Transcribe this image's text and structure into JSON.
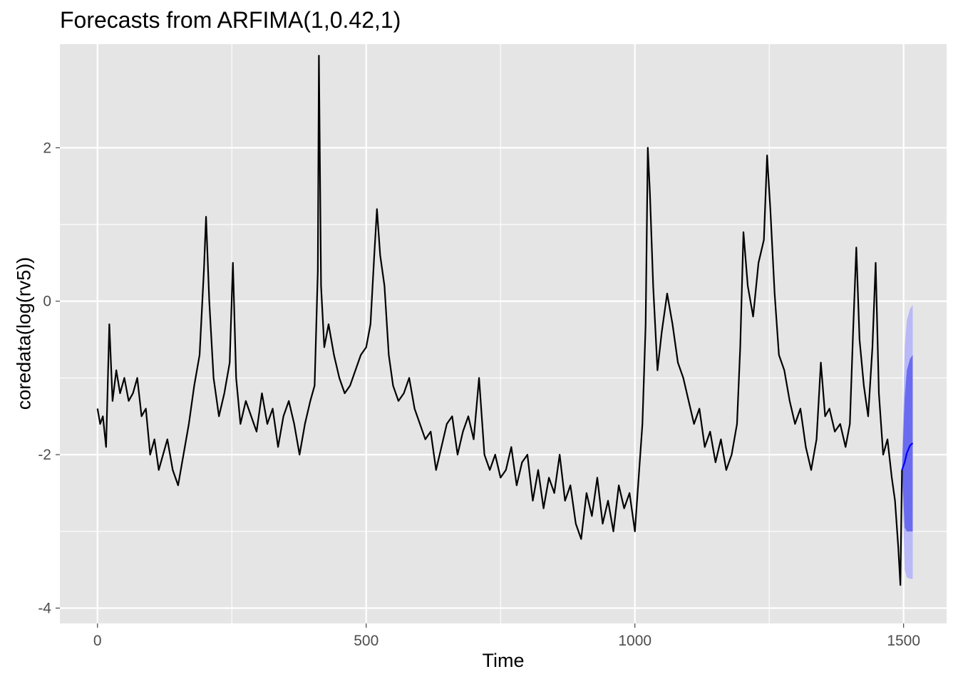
{
  "chart_data": {
    "type": "line",
    "title": "Forecasts from ARFIMA(1,0.42,1)",
    "xlabel": "Time",
    "ylabel": "coredata(log(rv5))",
    "xlim": [
      -70,
      1580
    ],
    "ylim": [
      -4.2,
      3.35
    ],
    "x_ticks": [
      0,
      500,
      1000,
      1500
    ],
    "x_tick_labels": [
      "0",
      "500",
      "1000",
      "1500"
    ],
    "y_ticks": [
      -4,
      -2,
      0,
      2
    ],
    "y_tick_labels": [
      "-4",
      "-2",
      "0",
      "2"
    ],
    "x_minor": [
      250,
      750,
      1250
    ],
    "y_minor": [
      -3,
      -1,
      1
    ],
    "grid": true,
    "colors": {
      "panel": "#e5e5e5",
      "grid": "#ffffff",
      "series": "#000000",
      "forecast": "#0000ff",
      "band80": "#6b6bef",
      "band95": "#b9b9f7"
    },
    "series": [
      {
        "values": [
          [
            0,
            -1.4
          ],
          [
            5,
            -1.6
          ],
          [
            10,
            -1.5
          ],
          [
            16,
            -1.9
          ],
          [
            22,
            -0.3
          ],
          [
            28,
            -1.3
          ],
          [
            35,
            -0.9
          ],
          [
            42,
            -1.2
          ],
          [
            50,
            -1.0
          ],
          [
            58,
            -1.3
          ],
          [
            66,
            -1.2
          ],
          [
            74,
            -1.0
          ],
          [
            82,
            -1.5
          ],
          [
            90,
            -1.4
          ],
          [
            98,
            -2.0
          ],
          [
            106,
            -1.8
          ],
          [
            114,
            -2.2
          ],
          [
            122,
            -2.0
          ],
          [
            130,
            -1.8
          ],
          [
            140,
            -2.2
          ],
          [
            150,
            -2.4
          ],
          [
            160,
            -2.0
          ],
          [
            170,
            -1.6
          ],
          [
            180,
            -1.1
          ],
          [
            190,
            -0.7
          ],
          [
            198,
            0.4
          ],
          [
            202,
            1.1
          ],
          [
            208,
            0.0
          ],
          [
            216,
            -1.0
          ],
          [
            226,
            -1.5
          ],
          [
            236,
            -1.2
          ],
          [
            246,
            -0.8
          ],
          [
            252,
            0.5
          ],
          [
            258,
            -1.0
          ],
          [
            266,
            -1.6
          ],
          [
            276,
            -1.3
          ],
          [
            286,
            -1.5
          ],
          [
            296,
            -1.7
          ],
          [
            306,
            -1.2
          ],
          [
            316,
            -1.6
          ],
          [
            326,
            -1.4
          ],
          [
            336,
            -1.9
          ],
          [
            346,
            -1.5
          ],
          [
            356,
            -1.3
          ],
          [
            366,
            -1.6
          ],
          [
            376,
            -2.0
          ],
          [
            386,
            -1.6
          ],
          [
            396,
            -1.3
          ],
          [
            404,
            -1.1
          ],
          [
            410,
            0.4
          ],
          [
            412,
            3.2
          ],
          [
            416,
            0.2
          ],
          [
            422,
            -0.6
          ],
          [
            430,
            -0.3
          ],
          [
            440,
            -0.7
          ],
          [
            450,
            -1.0
          ],
          [
            460,
            -1.2
          ],
          [
            470,
            -1.1
          ],
          [
            480,
            -0.9
          ],
          [
            490,
            -0.7
          ],
          [
            500,
            -0.6
          ],
          [
            508,
            -0.3
          ],
          [
            515,
            0.6
          ],
          [
            520,
            1.2
          ],
          [
            526,
            0.6
          ],
          [
            534,
            0.2
          ],
          [
            542,
            -0.7
          ],
          [
            550,
            -1.1
          ],
          [
            560,
            -1.3
          ],
          [
            570,
            -1.2
          ],
          [
            580,
            -1.0
          ],
          [
            590,
            -1.4
          ],
          [
            600,
            -1.6
          ],
          [
            610,
            -1.8
          ],
          [
            620,
            -1.7
          ],
          [
            630,
            -2.2
          ],
          [
            640,
            -1.9
          ],
          [
            650,
            -1.6
          ],
          [
            660,
            -1.5
          ],
          [
            670,
            -2.0
          ],
          [
            680,
            -1.7
          ],
          [
            690,
            -1.5
          ],
          [
            700,
            -1.8
          ],
          [
            710,
            -1.0
          ],
          [
            720,
            -2.0
          ],
          [
            730,
            -2.2
          ],
          [
            740,
            -2.0
          ],
          [
            750,
            -2.3
          ],
          [
            760,
            -2.2
          ],
          [
            770,
            -1.9
          ],
          [
            780,
            -2.4
          ],
          [
            790,
            -2.1
          ],
          [
            800,
            -2.0
          ],
          [
            810,
            -2.6
          ],
          [
            820,
            -2.2
          ],
          [
            830,
            -2.7
          ],
          [
            840,
            -2.3
          ],
          [
            850,
            -2.5
          ],
          [
            860,
            -2.0
          ],
          [
            870,
            -2.6
          ],
          [
            880,
            -2.4
          ],
          [
            890,
            -2.9
          ],
          [
            900,
            -3.1
          ],
          [
            910,
            -2.5
          ],
          [
            920,
            -2.8
          ],
          [
            930,
            -2.3
          ],
          [
            940,
            -2.9
          ],
          [
            950,
            -2.6
          ],
          [
            960,
            -3.0
          ],
          [
            970,
            -2.4
          ],
          [
            980,
            -2.7
          ],
          [
            990,
            -2.5
          ],
          [
            1000,
            -3.0
          ],
          [
            1006,
            -2.4
          ],
          [
            1014,
            -1.6
          ],
          [
            1020,
            -0.3
          ],
          [
            1024,
            2.0
          ],
          [
            1028,
            1.4
          ],
          [
            1034,
            0.2
          ],
          [
            1042,
            -0.9
          ],
          [
            1050,
            -0.4
          ],
          [
            1060,
            0.1
          ],
          [
            1070,
            -0.3
          ],
          [
            1080,
            -0.8
          ],
          [
            1090,
            -1.0
          ],
          [
            1100,
            -1.3
          ],
          [
            1110,
            -1.6
          ],
          [
            1120,
            -1.4
          ],
          [
            1130,
            -1.9
          ],
          [
            1140,
            -1.7
          ],
          [
            1150,
            -2.1
          ],
          [
            1160,
            -1.8
          ],
          [
            1170,
            -2.2
          ],
          [
            1180,
            -2.0
          ],
          [
            1190,
            -1.6
          ],
          [
            1196,
            -0.6
          ],
          [
            1202,
            0.9
          ],
          [
            1210,
            0.2
          ],
          [
            1220,
            -0.2
          ],
          [
            1230,
            0.5
          ],
          [
            1240,
            0.8
          ],
          [
            1246,
            1.9
          ],
          [
            1252,
            1.2
          ],
          [
            1260,
            0.1
          ],
          [
            1268,
            -0.7
          ],
          [
            1278,
            -0.9
          ],
          [
            1288,
            -1.3
          ],
          [
            1298,
            -1.6
          ],
          [
            1308,
            -1.4
          ],
          [
            1318,
            -1.9
          ],
          [
            1328,
            -2.2
          ],
          [
            1338,
            -1.8
          ],
          [
            1346,
            -0.8
          ],
          [
            1354,
            -1.5
          ],
          [
            1362,
            -1.4
          ],
          [
            1372,
            -1.7
          ],
          [
            1382,
            -1.6
          ],
          [
            1392,
            -1.9
          ],
          [
            1400,
            -1.6
          ],
          [
            1406,
            -0.4
          ],
          [
            1412,
            0.7
          ],
          [
            1418,
            -0.5
          ],
          [
            1426,
            -1.1
          ],
          [
            1434,
            -1.5
          ],
          [
            1442,
            -0.6
          ],
          [
            1448,
            0.5
          ],
          [
            1454,
            -1.2
          ],
          [
            1462,
            -2.0
          ],
          [
            1470,
            -1.8
          ],
          [
            1478,
            -2.3
          ],
          [
            1484,
            -2.6
          ],
          [
            1490,
            -3.2
          ],
          [
            1494,
            -3.7
          ],
          [
            1497,
            -2.2
          ]
        ]
      }
    ],
    "forecast": {
      "values": [
        [
          1497,
          -2.2
        ],
        [
          1502,
          -2.1
        ],
        [
          1506,
          -1.98
        ],
        [
          1512,
          -1.88
        ],
        [
          1517,
          -1.85
        ]
      ],
      "lo80": [
        [
          1497,
          -2.2
        ],
        [
          1502,
          -2.95
        ],
        [
          1506,
          -3.0
        ],
        [
          1512,
          -3.0
        ],
        [
          1517,
          -3.0
        ]
      ],
      "hi80": [
        [
          1497,
          -2.2
        ],
        [
          1502,
          -1.25
        ],
        [
          1506,
          -0.9
        ],
        [
          1512,
          -0.75
        ],
        [
          1517,
          -0.7
        ]
      ],
      "lo95": [
        [
          1497,
          -2.2
        ],
        [
          1502,
          -3.5
        ],
        [
          1506,
          -3.6
        ],
        [
          1512,
          -3.62
        ],
        [
          1517,
          -3.62
        ]
      ],
      "hi95": [
        [
          1497,
          -2.2
        ],
        [
          1502,
          -0.6
        ],
        [
          1506,
          -0.25
        ],
        [
          1512,
          -0.1
        ],
        [
          1517,
          -0.05
        ]
      ]
    }
  }
}
